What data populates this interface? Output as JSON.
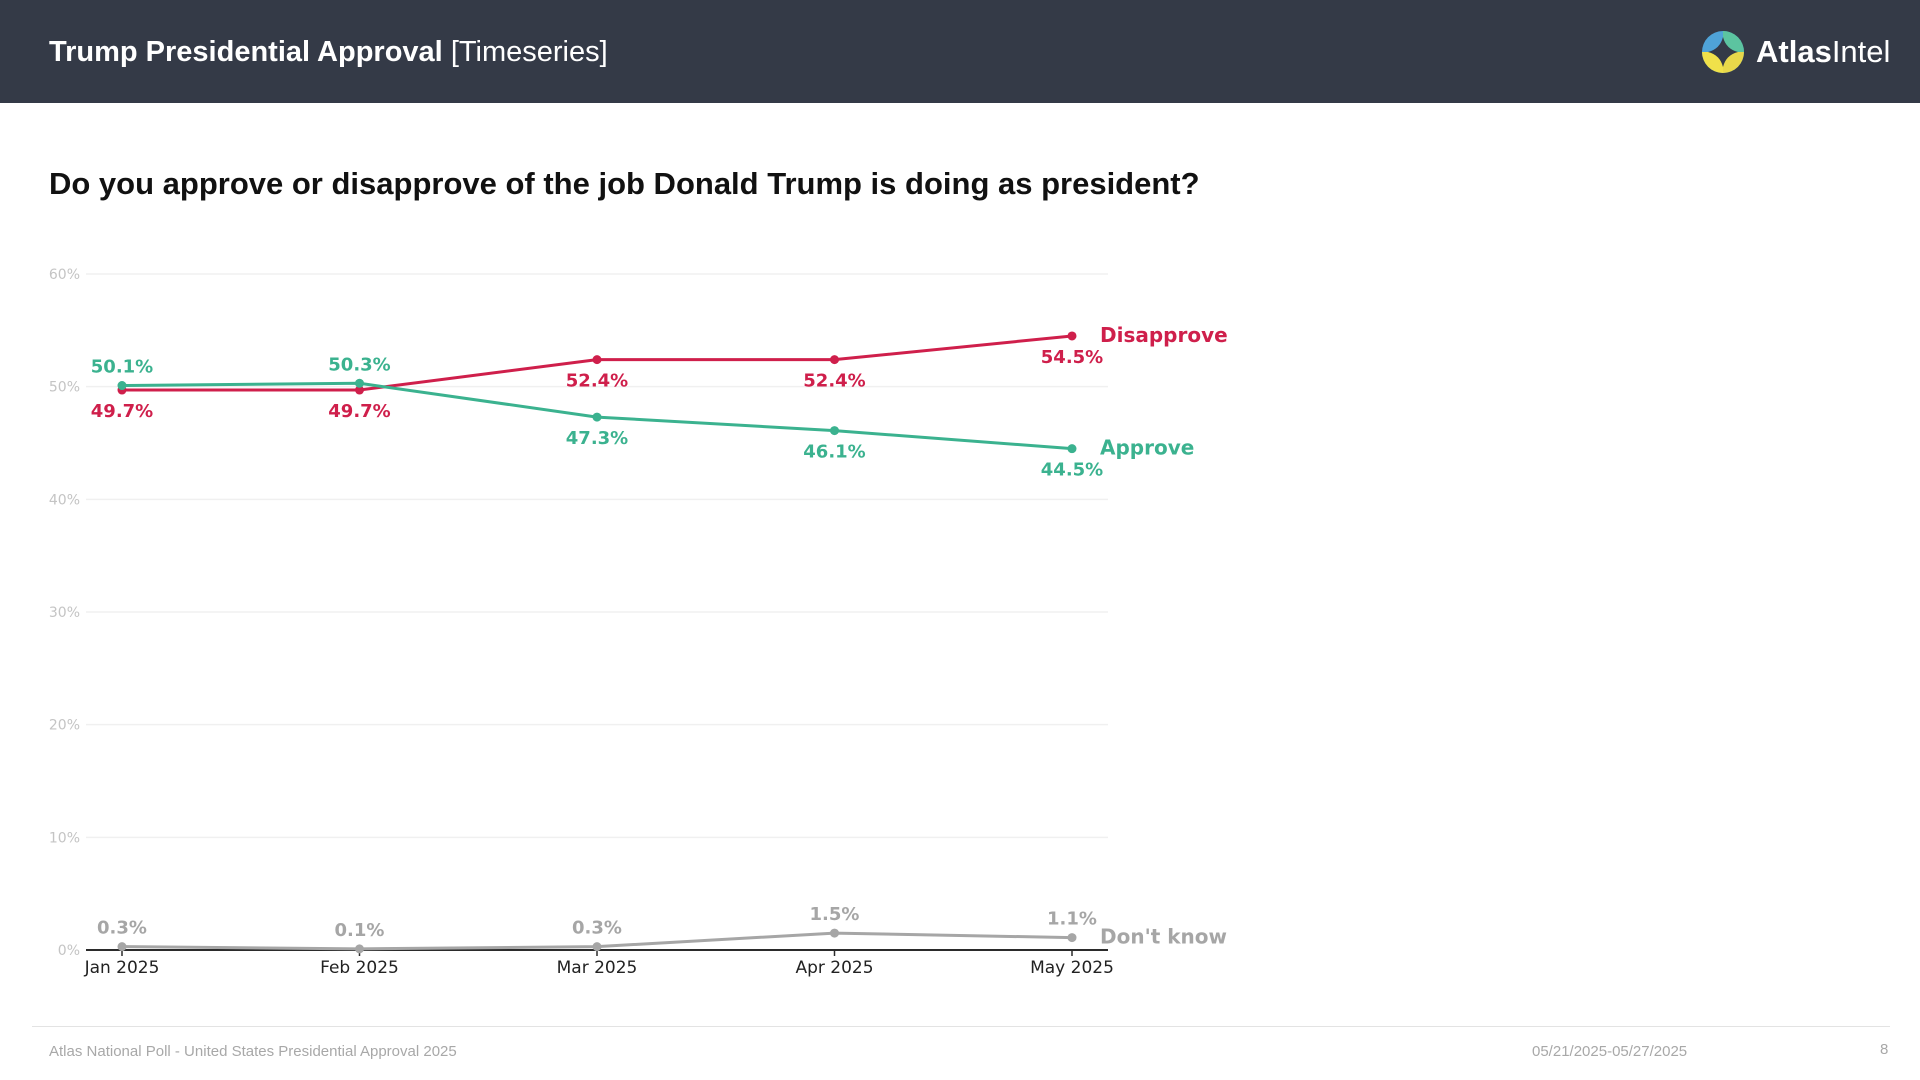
{
  "header": {
    "title_bold": "Trump Presidential Approval",
    "title_light": "[Timeseries]",
    "logo_bold": "Atlas",
    "logo_light": "Intel"
  },
  "question": "Do you approve or disapprove of the job Donald Trump is doing as president?",
  "footer": {
    "source": "Atlas National Poll - United States Presidential Approval 2025",
    "dates": "05/21/2025-05/27/2025",
    "page": "8"
  },
  "colors": {
    "header_bg": "#343a47",
    "approve": "#3bb28f",
    "disapprove": "#cf1f4b",
    "dont_know": "#a6a6a6"
  },
  "chart_data": {
    "type": "line",
    "categories": [
      "Jan 2025",
      "Feb 2025",
      "Mar 2025",
      "Apr 2025",
      "May 2025"
    ],
    "ylim": [
      0,
      60
    ],
    "yticks": [
      0,
      10,
      20,
      30,
      40,
      50,
      60
    ],
    "ytick_labels": [
      "0%",
      "10%",
      "20%",
      "30%",
      "40%",
      "50%",
      "60%"
    ],
    "grid": true,
    "series": [
      {
        "name": "Disapprove",
        "color": "#cf1f4b",
        "values": [
          49.7,
          49.7,
          52.4,
          52.4,
          54.5
        ],
        "labels": [
          "49.7%",
          "49.7%",
          "52.4%",
          "52.4%",
          "54.5%"
        ],
        "label_pos": [
          "below",
          "below",
          "below",
          "below",
          "below"
        ]
      },
      {
        "name": "Approve",
        "color": "#3bb28f",
        "values": [
          50.1,
          50.3,
          47.3,
          46.1,
          44.5
        ],
        "labels": [
          "50.1%",
          "50.3%",
          "47.3%",
          "46.1%",
          "44.5%"
        ],
        "label_pos": [
          "above",
          "above",
          "below",
          "below",
          "below"
        ]
      },
      {
        "name": "Don't know",
        "color": "#a6a6a6",
        "values": [
          0.3,
          0.1,
          0.3,
          1.5,
          1.1
        ],
        "labels": [
          "0.3%",
          "0.1%",
          "0.3%",
          "1.5%",
          "1.1%"
        ],
        "label_pos": [
          "above",
          "above",
          "above",
          "above",
          "above"
        ]
      }
    ]
  }
}
